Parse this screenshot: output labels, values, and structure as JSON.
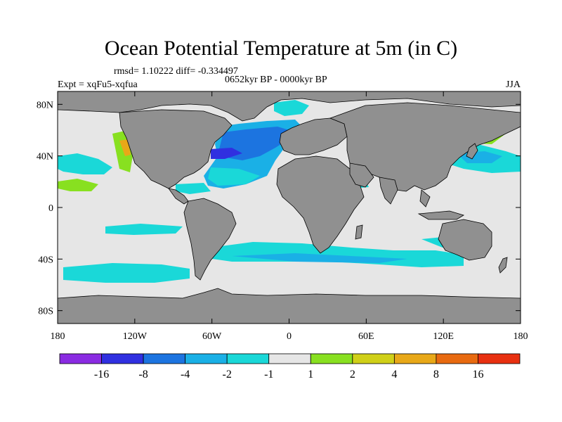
{
  "chart_data": {
    "type": "heatmap",
    "title": "Ocean Potential Temperature at 5m (in C)",
    "stats_text": "rmsd= 1.10222 diff= -0.334497",
    "period_text": "0652kyr BP - 0000kyr BP",
    "experiment_text": "Expt = xqFu5-xqfua",
    "season_text": "JJA",
    "x_range": [
      -180,
      180
    ],
    "y_range": [
      -90,
      90
    ],
    "x_ticks": [
      {
        "value": -180,
        "label": "180"
      },
      {
        "value": -120,
        "label": "120W"
      },
      {
        "value": -60,
        "label": "60W"
      },
      {
        "value": 0,
        "label": "0"
      },
      {
        "value": 60,
        "label": "60E"
      },
      {
        "value": 120,
        "label": "120E"
      },
      {
        "value": 180,
        "label": "180"
      }
    ],
    "y_ticks": [
      {
        "value": 80,
        "label": "80N"
      },
      {
        "value": 40,
        "label": "40N"
      },
      {
        "value": 0,
        "label": "0"
      },
      {
        "value": -40,
        "label": "40S"
      },
      {
        "value": -80,
        "label": "80S"
      }
    ],
    "colorbar": {
      "colors": [
        "#8a2be2",
        "#3030e0",
        "#1c74e0",
        "#1ab0e6",
        "#1ad8d8",
        "#e6e6e6",
        "#88e020",
        "#d0d018",
        "#e8a818",
        "#e86a10",
        "#e83010"
      ],
      "labels": [
        "-16",
        "-8",
        "-4",
        "-2",
        "-1",
        "1",
        "2",
        "4",
        "8",
        "16"
      ]
    },
    "colors": {
      "land": "#909090",
      "no_change": "#e6e6e6",
      "coast": "#000000"
    }
  }
}
